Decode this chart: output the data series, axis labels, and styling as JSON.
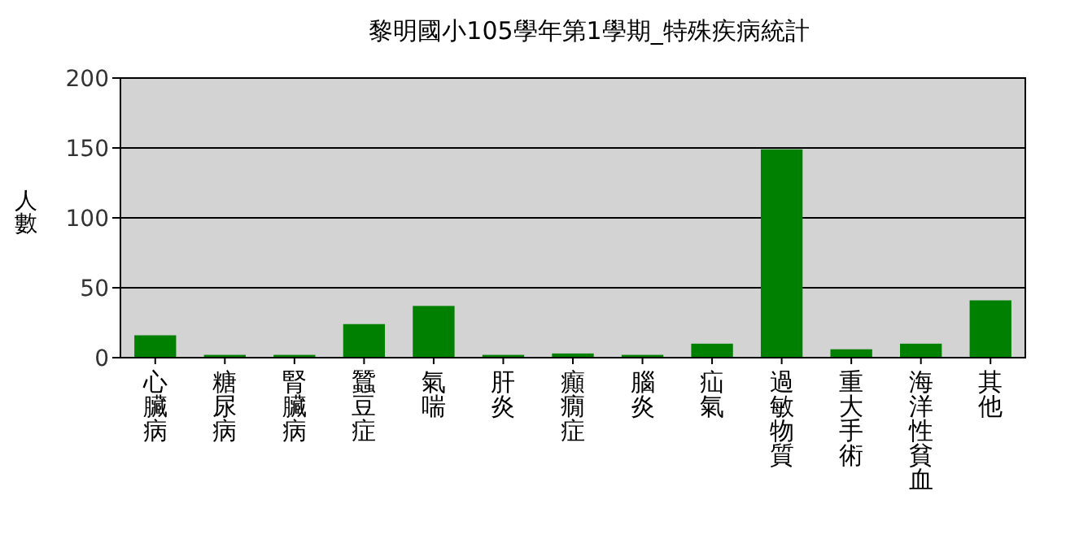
{
  "chart_data": {
    "type": "bar",
    "title": "黎明國小105學年第1學期_特殊疾病統計",
    "ylabel": "人數",
    "categories": [
      "心臟病",
      "糖尿病",
      "腎臟病",
      "蠶豆症",
      "氣喘",
      "肝炎",
      "癲癇症",
      "腦炎",
      "疝氣",
      "過敏物質",
      "重大手術",
      "海洋性貧血",
      "其他"
    ],
    "values": [
      16,
      2,
      2,
      24,
      37,
      2,
      3,
      2,
      10,
      149,
      6,
      10,
      41
    ],
    "color": "#008000",
    "ylim": [
      0,
      200
    ],
    "yticks": [
      0,
      50,
      100,
      150,
      200
    ],
    "grid": "y"
  }
}
